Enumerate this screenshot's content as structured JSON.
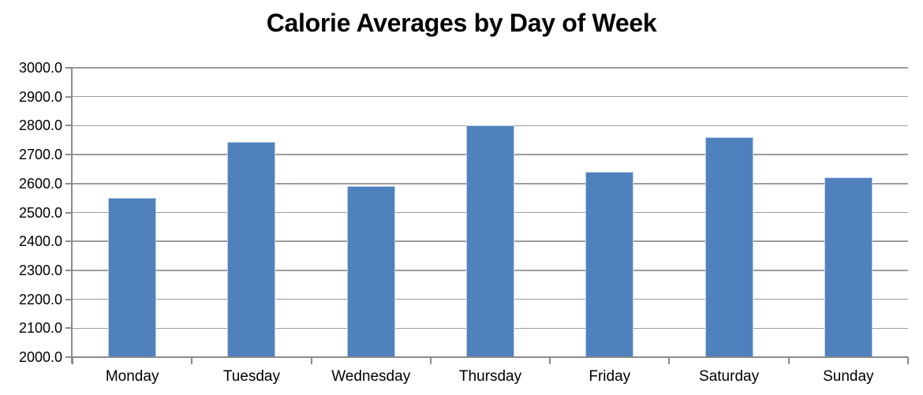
{
  "title": "Calorie Averages by Day of Week",
  "colors": {
    "bar_fill": "#4f81bd",
    "bar_border": "#bdd0ea",
    "gridline": "#9d9d9d",
    "axis": "#8b8b8b",
    "text": "#000000",
    "background": "#ffffff"
  },
  "chart_data": {
    "type": "bar",
    "title": "Calorie Averages by Day of Week",
    "categories": [
      "Monday",
      "Tuesday",
      "Wednesday",
      "Thursday",
      "Friday",
      "Saturday",
      "Sunday"
    ],
    "values": [
      2550,
      2745,
      2590,
      2800,
      2640,
      2760,
      2620
    ],
    "xlabel": "",
    "ylabel": "",
    "ylim": [
      2000,
      3000
    ],
    "ytick_step": 100,
    "ytick_labels": [
      "2000.0",
      "2100.0",
      "2200.0",
      "2300.0",
      "2400.0",
      "2500.0",
      "2600.0",
      "2700.0",
      "2800.0",
      "2900.0",
      "3000.0"
    ],
    "grid": true,
    "legend": false
  }
}
